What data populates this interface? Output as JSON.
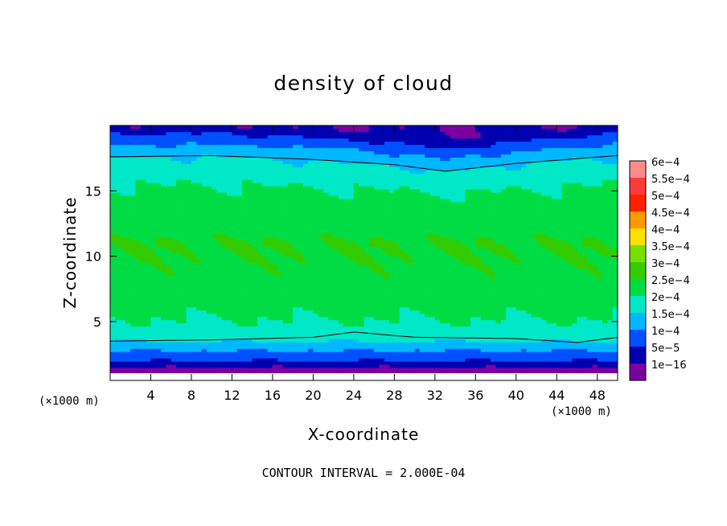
{
  "chart_data": {
    "type": "heatmap",
    "title": "density of cloud",
    "xlabel": "X-coordinate",
    "ylabel": "Z-coordinate",
    "x_unit_left": "(×1000 m)",
    "x_unit_right": "(×1000 m)",
    "footer": "CONTOUR INTERVAL = 2.000E-04",
    "xlim": [
      0,
      50
    ],
    "ylim": [
      0.5,
      20
    ],
    "x_ticks": [
      4,
      8,
      12,
      16,
      20,
      24,
      28,
      32,
      36,
      40,
      44,
      48
    ],
    "x_tick_labels": [
      "4",
      "8",
      "12",
      "16",
      "20",
      "24",
      "28",
      "32",
      "36",
      "40",
      "44",
      "48"
    ],
    "y_ticks": [
      5,
      10,
      15
    ],
    "y_tick_labels": [
      "5",
      "10",
      "15"
    ],
    "colorbar": {
      "labels": [
        "6e-4",
        "5.5e-4",
        "5e-4",
        "4.5e-4",
        "4e-4",
        "3.5e-4",
        "3e-4",
        "2.5e-4",
        "2e-4",
        "1.5e-4",
        "1e-4",
        "5e-5",
        "1e-16"
      ],
      "colors": [
        "#ff8a8a",
        "#ff3a3a",
        "#ff2200",
        "#ff9900",
        "#ffe000",
        "#77e000",
        "#33cc00",
        "#00dd44",
        "#00e8c8",
        "#00b8ff",
        "#0050ff",
        "#0000b0",
        "#7a00a0"
      ]
    },
    "contour_levels": [
      0.0002
    ],
    "fields": {
      "z_levels": [
        1.0,
        1.5,
        2.0,
        2.8,
        3.5,
        4.5,
        6,
        8,
        11,
        14,
        16,
        17.5,
        18.5,
        19.3,
        20
      ],
      "density_profile": [
        1e-16,
        5e-05,
        0.0001,
        0.00015,
        0.0002,
        0.00024,
        0.00026,
        0.00029,
        0.0003,
        0.00027,
        0.00024,
        0.0002,
        0.00015,
        0.0001,
        5e-05
      ],
      "upper_contour_z": [
        [
          0,
          17.6
        ],
        [
          10,
          17.7
        ],
        [
          20,
          17.4
        ],
        [
          28,
          17.0
        ],
        [
          33,
          16.5
        ],
        [
          40,
          17.1
        ],
        [
          50,
          17.7
        ]
      ],
      "lower_contour_z": [
        [
          0,
          3.5
        ],
        [
          10,
          3.6
        ],
        [
          20,
          3.8
        ],
        [
          24,
          4.2
        ],
        [
          30,
          3.8
        ],
        [
          40,
          3.7
        ],
        [
          46,
          3.4
        ],
        [
          50,
          3.8
        ]
      ]
    }
  }
}
